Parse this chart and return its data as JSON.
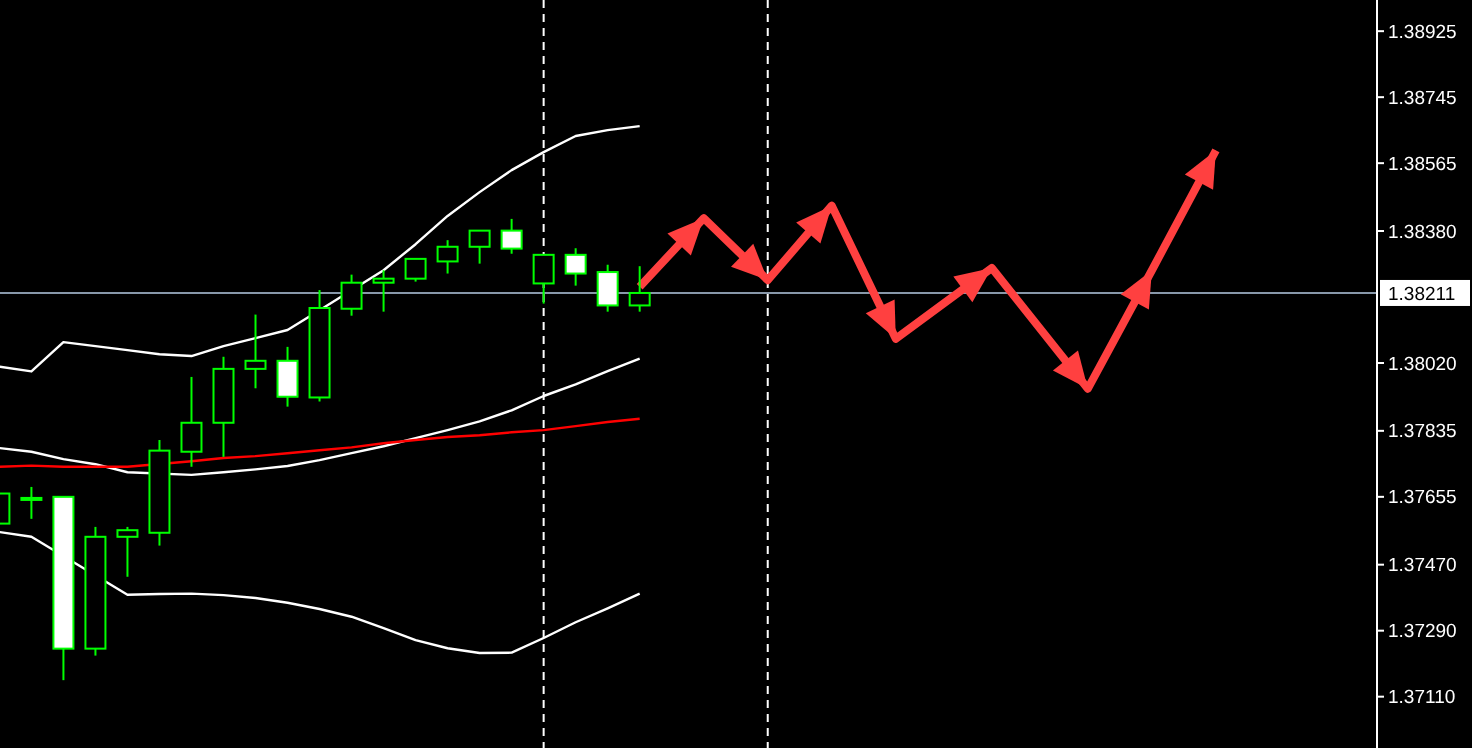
{
  "chart_data": {
    "type": "candlestick",
    "categories": [
      null,
      null,
      null,
      null,
      null,
      null,
      null,
      null,
      null,
      null,
      null,
      null,
      null,
      null,
      null,
      null,
      null,
      null,
      null,
      null,
      null,
      null,
      null,
      null,
      null,
      null,
      null,
      null,
      null,
      null,
      null,
      null,
      null,
      null,
      null,
      null,
      null,
      null,
      null,
      null,
      null,
      null,
      null,
      null
    ],
    "ohlc": [
      [
        1.37582,
        1.37664,
        1.37582,
        1.37664
      ],
      [
        1.37652,
        1.37682,
        1.37595,
        1.37652
      ],
      [
        1.37655,
        1.37655,
        1.37155,
        1.37241
      ],
      [
        1.37241,
        1.37573,
        1.37222,
        1.37546
      ],
      [
        1.37546,
        1.37573,
        1.37437,
        1.37564
      ],
      [
        1.37557,
        1.3781,
        1.37522,
        1.37781
      ],
      [
        1.37778,
        1.37982,
        1.37737,
        1.37857
      ],
      [
        1.37857,
        1.38037,
        1.37764,
        1.38004
      ],
      [
        1.38004,
        1.38152,
        1.37951,
        1.38026
      ],
      [
        1.38026,
        1.38064,
        1.37901,
        1.37928
      ],
      [
        1.37926,
        1.38219,
        1.37915,
        1.3817
      ],
      [
        1.38168,
        1.38261,
        1.38149,
        1.38239
      ],
      [
        1.38239,
        1.38273,
        1.3816,
        1.3825
      ],
      [
        1.3825,
        1.38304,
        1.38242,
        1.38304
      ],
      [
        1.38297,
        1.38355,
        1.38264,
        1.38337
      ],
      [
        1.38337,
        1.38381,
        1.38291,
        1.38381
      ],
      [
        1.38381,
        1.38413,
        1.38318,
        1.38332
      ],
      [
        1.38237,
        1.38315,
        1.38182,
        1.38315
      ],
      [
        1.38315,
        1.38333,
        1.38231,
        1.38264
      ],
      [
        1.38268,
        1.38288,
        1.3816,
        1.38177
      ],
      [
        1.38177,
        1.38284,
        1.3816,
        1.38211
      ],
      null,
      null,
      null,
      null,
      null,
      null,
      null,
      null,
      null,
      null,
      null,
      null,
      null,
      null,
      null,
      null,
      null,
      null,
      null,
      null,
      null,
      null,
      null
    ],
    "series": [
      {
        "type": "line",
        "color": "#ffffff",
        "values": [
          1.3801,
          1.37997,
          1.38077,
          1.38066,
          1.38055,
          1.38044,
          1.38039,
          1.38066,
          1.38088,
          1.3811,
          1.38164,
          null,
          1.38273,
          1.38344,
          1.38421,
          1.38486,
          1.38546,
          1.38595,
          1.38639,
          1.38655,
          1.38666,
          null,
          null,
          null,
          null,
          null,
          null,
          null,
          null,
          null,
          null,
          null,
          null,
          null,
          null,
          null,
          null,
          null,
          null,
          null,
          null,
          null,
          null,
          null
        ]
      },
      {
        "type": "line",
        "color": "#ffffff",
        "values": [
          1.37788,
          1.37778,
          1.37758,
          1.37744,
          1.37722,
          null,
          1.37715,
          1.37722,
          1.3773,
          1.37739,
          1.37755,
          1.37774,
          1.37793,
          1.37815,
          1.37837,
          1.37861,
          1.37891,
          1.3793,
          1.37962,
          1.37998,
          1.38032,
          null,
          null,
          null,
          null,
          null,
          null,
          null,
          null,
          null,
          null,
          null,
          null,
          null,
          null,
          null,
          null,
          null,
          null,
          null,
          null,
          null,
          null,
          null
        ]
      },
      {
        "type": "line",
        "color": "#ffffff",
        "values": [
          1.37559,
          1.37546,
          null,
          null,
          1.37388,
          1.3739,
          1.37391,
          1.37387,
          1.37379,
          1.37366,
          1.37349,
          1.37328,
          1.37297,
          1.37264,
          1.37242,
          1.37229,
          1.3723,
          1.3727,
          1.37313,
          1.37351,
          1.37391,
          null,
          null,
          null,
          null,
          null,
          null,
          null,
          null,
          null,
          null,
          null,
          null,
          null,
          null,
          null,
          null,
          null,
          null,
          null,
          null,
          null,
          null,
          null
        ]
      },
      {
        "type": "line",
        "color": "#ff0000",
        "values": [
          1.37737,
          1.3774,
          1.37737,
          1.37737,
          1.37737,
          null,
          1.37752,
          1.37761,
          1.37766,
          1.37774,
          1.37782,
          1.3779,
          1.37801,
          1.3781,
          1.37818,
          1.37823,
          1.37831,
          1.37837,
          1.37848,
          1.37859,
          1.37868,
          null,
          null,
          null,
          null,
          null,
          null,
          null,
          null,
          null,
          null,
          null,
          null,
          null,
          null,
          null,
          null,
          null,
          null,
          null,
          null,
          null,
          null,
          null
        ]
      },
      {
        "type": "line",
        "color": "#ff4040",
        "values": [
          null,
          null,
          null,
          null,
          null,
          null,
          null,
          null,
          null,
          null,
          null,
          null,
          null,
          null,
          null,
          null,
          null,
          null,
          null,
          null,
          1.38228,
          null,
          1.38415,
          null,
          1.38246,
          null,
          1.38449,
          null,
          1.38086,
          null,
          null,
          1.38279,
          null,
          null,
          1.3795,
          null,
          1.38273,
          null,
          1.386,
          null,
          null,
          null,
          null,
          null
        ]
      }
    ],
    "ylim": [
      1.3697,
      1.3901
    ],
    "yticks": [
      {
        "value": 1.3711,
        "label": "1.37110"
      },
      {
        "value": 1.3729,
        "label": "1.37290"
      },
      {
        "value": 1.3747,
        "label": "1.37470"
      },
      1.37655,
      1.37835,
      {
        "value": 1.3802,
        "label": "1.38020"
      },
      {
        "value": 1.3838,
        "label": "1.38380"
      },
      1.38565,
      1.38745,
      1.38925
    ],
    "ref_lines": [
      {
        "axis": "y",
        "value": 1.38211,
        "label": "1.38211",
        "color": "#8898aa"
      }
    ],
    "tick_labels": "y"
  }
}
